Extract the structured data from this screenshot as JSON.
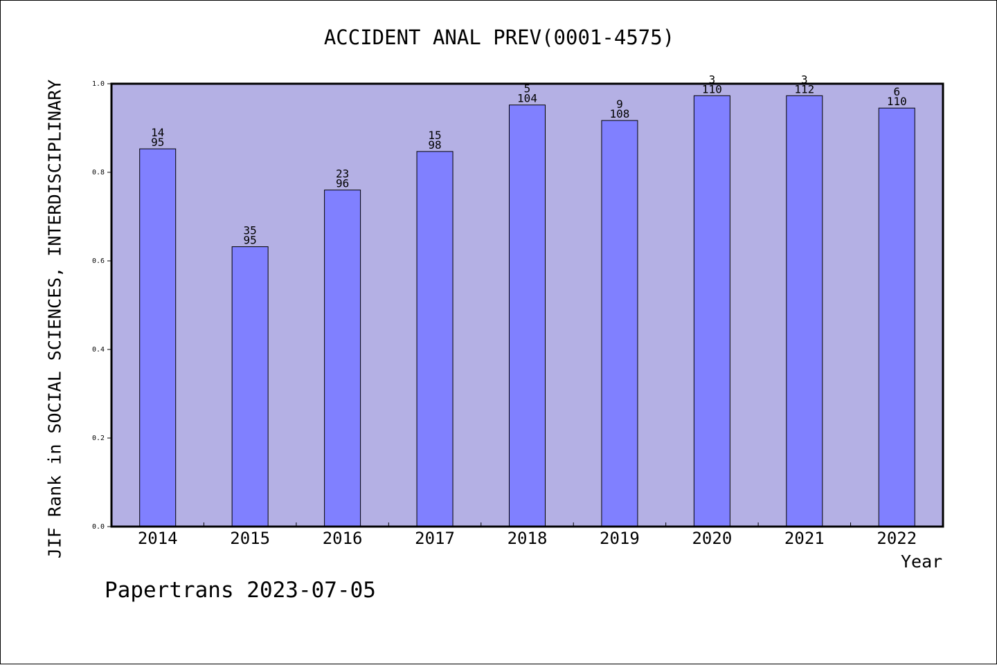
{
  "chart_data": {
    "type": "bar",
    "title": "ACCIDENT ANAL PREV(0001-4575)",
    "xlabel": "Year",
    "ylabel": "JIF Rank in SOCIAL SCIENCES, INTERDISCIPLINARY",
    "categories": [
      "2014",
      "2015",
      "2016",
      "2017",
      "2018",
      "2019",
      "2020",
      "2021",
      "2022"
    ],
    "values": [
      0.853,
      0.632,
      0.76,
      0.847,
      0.952,
      0.917,
      0.973,
      0.973,
      0.945
    ],
    "rank_labels": [
      "14",
      "35",
      "23",
      "15",
      "5",
      "9",
      "3",
      "3",
      "6"
    ],
    "total_labels": [
      "95",
      "95",
      "96",
      "98",
      "104",
      "108",
      "110",
      "112",
      "110"
    ],
    "ylim": [
      0,
      1.0
    ],
    "yticks": [
      "0.0",
      "0.2",
      "0.4",
      "0.6",
      "0.8",
      "1.0"
    ],
    "grid": false,
    "colors": {
      "plot_background": "#b4b0e4",
      "bar_fill": "#8080ff",
      "bar_stroke": "#000000"
    }
  },
  "footer": "Papertrans 2023-07-05"
}
